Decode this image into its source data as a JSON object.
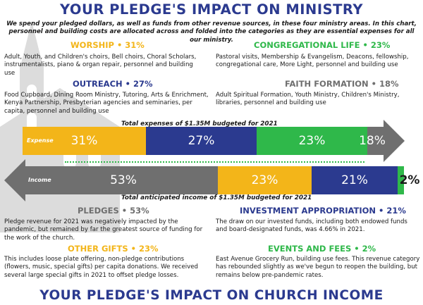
{
  "top_title": "YOUR PLEDGE'S IMPACT ON MINISTRY",
  "intro": "We spend your pledged dollars, as well as funds from other revenue sources, in these four ministry areas. In this chart, personnel and building costs are allocated across and folded into the categories as they are essential expenses for all our ministry.",
  "ministry": {
    "worship": {
      "name": "WORSHIP",
      "pct": "• 31%",
      "desc": "Adult, Youth, and Children's choirs, Bell choirs, Choral Scholars, instrumentalists, piano & organ repair, personnel and building use"
    },
    "congregational": {
      "name": "CONGREGATIONAL LIFE",
      "pct": "• 23%",
      "desc": "Pastoral visits, Membership & Evangelism, Deacons, fellowship, congregational care, More Light, personnel and building use"
    },
    "outreach": {
      "name": "OUTREACH",
      "pct": "• 27%",
      "desc": "Food Cupboard, Dining Room Ministry, Tutoring, Arts & Enrichment, Kenya Partnership, Presbyterian agencies and seminaries, per capita, personnel and building use"
    },
    "faith": {
      "name": "FAITH FORMATION",
      "pct": "• 18%",
      "desc": "Adult Spiritual Formation, Youth Ministry, Children's Ministry, libraries, personnel and building use"
    }
  },
  "expense_caption": "Total expenses of $1.35M budgeted for 2021",
  "income_caption": "Total anticipated income of $1.35M budgeted for 2021",
  "expense_bar": {
    "label": "Expense",
    "segments": [
      {
        "value": "31%",
        "color": "#f3b519"
      },
      {
        "value": "27%",
        "color": "#2b3a8f"
      },
      {
        "value": "23%",
        "color": "#2fb84a"
      },
      {
        "value": "18%",
        "color": "#6f6f6f"
      }
    ]
  },
  "income_bar": {
    "label": "Income",
    "segments": [
      {
        "value": "53%",
        "color": "#6f6f6f"
      },
      {
        "value": "23%",
        "color": "#f3b519"
      },
      {
        "value": "21%",
        "color": "#2b3a8f"
      },
      {
        "value": "2%",
        "color": "#2fb84a"
      }
    ]
  },
  "income": {
    "pledges": {
      "name": "PLEDGES",
      "pct": "• 53%",
      "desc": "Pledge revenue for 2021 was negatively impacted by the pandemic, but remained by far the greatest source of funding for the work of the church."
    },
    "investment": {
      "name": "INVESTMENT APPROPRIATION",
      "pct": "• 21%",
      "desc": "The draw on our invested funds, including both endowed funds and board-designated funds, was 4.66% in 2021."
    },
    "other": {
      "name": "OTHER GIFTS",
      "pct": "• 23%",
      "desc": "This includes loose plate offering, non-pledge contributions (flowers, music, special gifts) per capita donations. We received several large special gifts in 2021 to offset pledge losses."
    },
    "events": {
      "name": "EVENTS AND FEES",
      "pct": "• 2%",
      "desc": "East Avenue Grocery Run, building use fees. This revenue category has rebounded slightly as we've begun to reopen the building, but remains below pre-pandemic rates."
    }
  },
  "bottom_title": "YOUR PLEDGE'S IMPACT ON CHURCH INCOME"
}
